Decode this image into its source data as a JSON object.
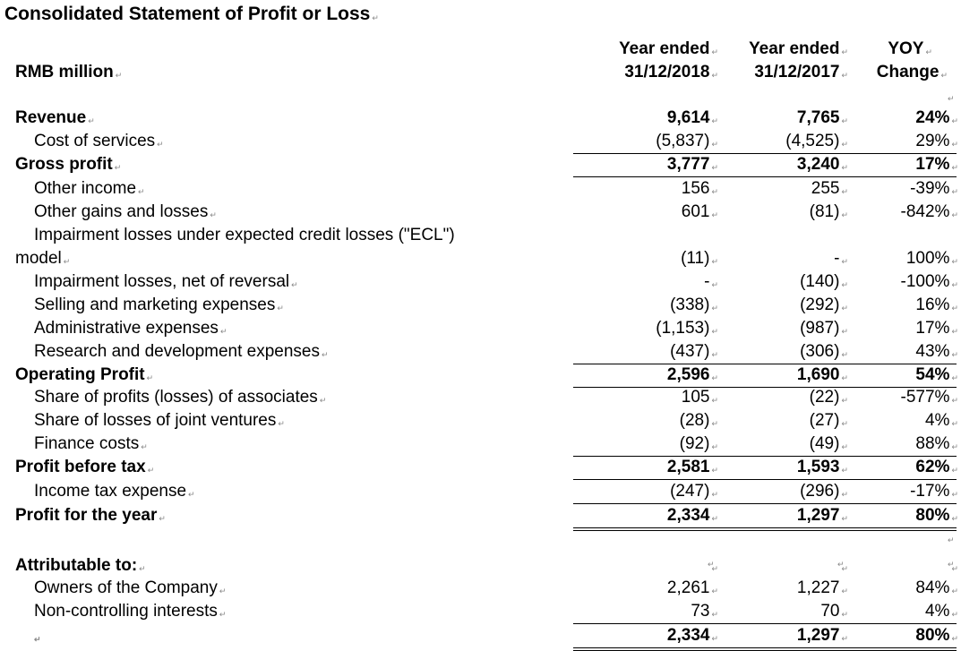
{
  "title": "Consolidated Statement of Profit or Loss",
  "header": {
    "unit": "RMB million",
    "col1": [
      "Year ended",
      "31/12/2018"
    ],
    "col2": [
      "Year ended",
      "31/12/2017"
    ],
    "col3": [
      "YOY",
      "Change"
    ]
  },
  "rows": [
    {
      "label": "Revenue",
      "bold": true,
      "indent": false,
      "values": [
        "9,614",
        "7,765",
        "24%"
      ]
    },
    {
      "label": "Cost of services",
      "indent": true,
      "values": [
        "(5,837)",
        "(4,525)",
        "29%"
      ],
      "rule": "single"
    },
    {
      "label": "Gross profit",
      "bold": true,
      "values": [
        "3,777",
        "3,240",
        "17%"
      ],
      "rule": "single"
    },
    {
      "label": "Other income",
      "indent": true,
      "values": [
        "156",
        "255",
        "-39%"
      ]
    },
    {
      "label": "Other gains and losses",
      "indent": true,
      "values": [
        "601",
        "(81)",
        "-842%"
      ]
    },
    {
      "label": "Impairment losses under expected credit losses (\"ECL\")",
      "label2": "model",
      "indent": true,
      "values": [
        "(11)",
        "-",
        "100%"
      ]
    },
    {
      "label": "Impairment losses, net of reversal",
      "indent": true,
      "values": [
        "-",
        "(140)",
        "-100%"
      ]
    },
    {
      "label": "Selling and marketing expenses",
      "indent": true,
      "values": [
        "(338)",
        "(292)",
        "16%"
      ]
    },
    {
      "label": "Administrative expenses",
      "indent": true,
      "values": [
        "(1,153)",
        "(987)",
        "17%"
      ]
    },
    {
      "label": "Research and development expenses",
      "indent": true,
      "values": [
        "(437)",
        "(306)",
        "43%"
      ],
      "rule": "single"
    },
    {
      "label": "Operating Profit",
      "bold": true,
      "values": [
        "2,596",
        "1,690",
        "54%"
      ],
      "rule": "single"
    },
    {
      "label": "Share of profits (losses) of associates",
      "indent": true,
      "values": [
        "105",
        "(22)",
        "-577%"
      ]
    },
    {
      "label": "Share of losses of joint ventures",
      "indent": true,
      "values": [
        "(28)",
        "(27)",
        "4%"
      ]
    },
    {
      "label": "Finance costs",
      "indent": true,
      "values": [
        "(92)",
        "(49)",
        "88%"
      ],
      "rule": "single"
    },
    {
      "label": "Profit before tax",
      "bold": true,
      "values": [
        "2,581",
        "1,593",
        "62%"
      ],
      "rule": "single"
    },
    {
      "label": "Income tax expense",
      "indent": true,
      "values": [
        "(247)",
        "(296)",
        "-17%"
      ],
      "rule": "single"
    },
    {
      "label": "Profit for the year",
      "bold": true,
      "values": [
        "2,334",
        "1,297",
        "80%"
      ],
      "rule": "double"
    },
    {
      "label": "Attributable to:",
      "bold": true,
      "values": [
        "",
        "",
        ""
      ]
    },
    {
      "label": "Owners of the Company",
      "indent": true,
      "values": [
        "2,261",
        "1,227",
        "84%"
      ]
    },
    {
      "label": "Non-controlling interests",
      "indent": true,
      "values": [
        "73",
        "70",
        "4%"
      ],
      "rule": "single"
    },
    {
      "label": "",
      "bold": true,
      "values": [
        "2,334",
        "1,297",
        "80%"
      ],
      "rule": "double"
    }
  ]
}
